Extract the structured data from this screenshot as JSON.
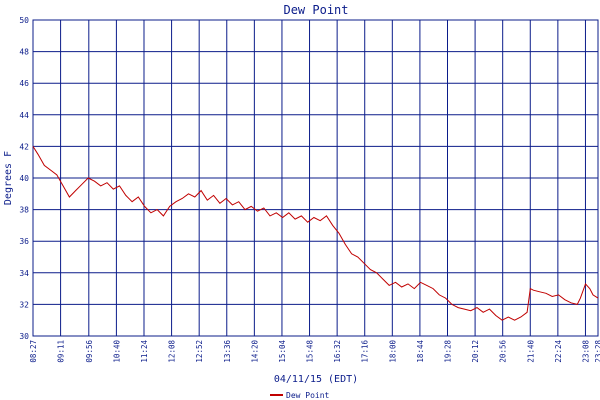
{
  "chart_data": {
    "type": "line",
    "title": "Dew Point",
    "xlabel": "04/11/15 (EDT)",
    "ylabel": "Degrees F",
    "ylim": [
      30,
      50
    ],
    "y_ticks": [
      "30",
      "32",
      "34",
      "36",
      "38",
      "40",
      "42",
      "44",
      "46",
      "48",
      "50"
    ],
    "x_ticks": [
      "08:27",
      "09:11",
      "09:56",
      "10:40",
      "11:24",
      "12:08",
      "12:52",
      "13:36",
      "14:20",
      "15:04",
      "15:48",
      "16:32",
      "17:16",
      "18:00",
      "18:44",
      "19:28",
      "20:12",
      "20:56",
      "21:40",
      "22:24",
      "23:08",
      "23:28"
    ],
    "x_range": [
      "08:27",
      "23:28"
    ],
    "grid": true,
    "legend_position": "bottom-center",
    "colors": {
      "series": "#c00000",
      "grid": "#0b1c8a",
      "text": "#0b1c8a"
    },
    "series": [
      {
        "name": "Dew Point",
        "x": [
          "08:27",
          "08:35",
          "08:45",
          "08:55",
          "09:05",
          "09:15",
          "09:25",
          "09:35",
          "09:45",
          "09:55",
          "10:05",
          "10:15",
          "10:25",
          "10:35",
          "10:45",
          "10:55",
          "11:05",
          "11:15",
          "11:25",
          "11:35",
          "11:45",
          "11:55",
          "12:05",
          "12:15",
          "12:25",
          "12:35",
          "12:45",
          "12:55",
          "13:05",
          "13:15",
          "13:25",
          "13:35",
          "13:45",
          "13:55",
          "14:05",
          "14:15",
          "14:25",
          "14:35",
          "14:45",
          "14:55",
          "15:05",
          "15:15",
          "15:25",
          "15:35",
          "15:45",
          "15:55",
          "16:05",
          "16:15",
          "16:25",
          "16:35",
          "16:45",
          "16:55",
          "17:05",
          "17:15",
          "17:25",
          "17:35",
          "17:45",
          "17:55",
          "18:05",
          "18:15",
          "18:25",
          "18:35",
          "18:45",
          "18:55",
          "19:05",
          "19:15",
          "19:25",
          "19:35",
          "19:45",
          "19:55",
          "20:05",
          "20:15",
          "20:25",
          "20:35",
          "20:45",
          "20:55",
          "21:05",
          "21:15",
          "21:25",
          "21:35",
          "21:40",
          "21:45",
          "21:55",
          "22:05",
          "22:15",
          "22:25",
          "22:35",
          "22:45",
          "22:55",
          "23:00",
          "23:08",
          "23:15",
          "23:20",
          "23:28"
        ],
        "values": [
          42.0,
          41.5,
          40.8,
          40.5,
          40.2,
          39.5,
          38.8,
          39.2,
          39.6,
          40.0,
          39.8,
          39.5,
          39.7,
          39.3,
          39.5,
          38.9,
          38.5,
          38.8,
          38.2,
          37.8,
          38.0,
          37.6,
          38.2,
          38.5,
          38.7,
          39.0,
          38.8,
          39.2,
          38.6,
          38.9,
          38.4,
          38.7,
          38.3,
          38.5,
          38.0,
          38.2,
          37.9,
          38.1,
          37.6,
          37.8,
          37.5,
          37.8,
          37.4,
          37.6,
          37.2,
          37.5,
          37.3,
          37.6,
          37.0,
          36.5,
          35.8,
          35.2,
          35.0,
          34.6,
          34.2,
          34.0,
          33.6,
          33.2,
          33.4,
          33.1,
          33.3,
          33.0,
          33.4,
          33.2,
          33.0,
          32.6,
          32.4,
          32.0,
          31.8,
          31.7,
          31.6,
          31.8,
          31.5,
          31.7,
          31.3,
          31.0,
          31.2,
          31.0,
          31.2,
          31.5,
          33.0,
          32.9,
          32.8,
          32.7,
          32.5,
          32.6,
          32.3,
          32.1,
          32.0,
          32.4,
          33.3,
          33.0,
          32.6,
          32.4
        ]
      }
    ]
  }
}
